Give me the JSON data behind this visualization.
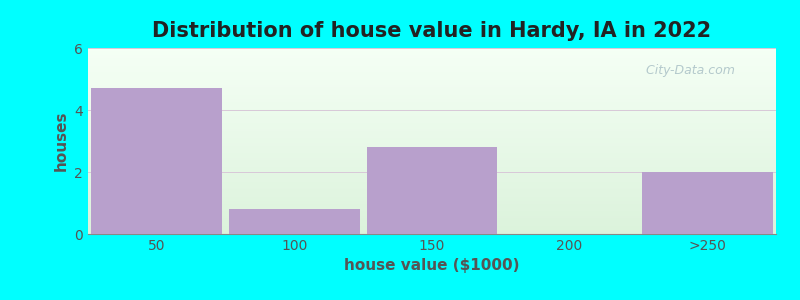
{
  "title": "Distribution of house value in Hardy, IA in 2022",
  "xlabel": "house value ($1000)",
  "ylabel": "houses",
  "categories": [
    "50",
    "100",
    "150",
    "200",
    ">250"
  ],
  "values": [
    4.7,
    0.8,
    2.8,
    0,
    2.0
  ],
  "bar_color": "#b8a0cc",
  "background_color": "#00FFFF",
  "plot_bg_top": "#f0fff8",
  "plot_bg_bottom": "#d8f0e0",
  "ylim": [
    0,
    6
  ],
  "yticks": [
    0,
    2,
    4,
    6
  ],
  "title_fontsize": 15,
  "label_fontsize": 11,
  "tick_fontsize": 10,
  "watermark_text": "City-Data.com",
  "bar_width": 0.95
}
